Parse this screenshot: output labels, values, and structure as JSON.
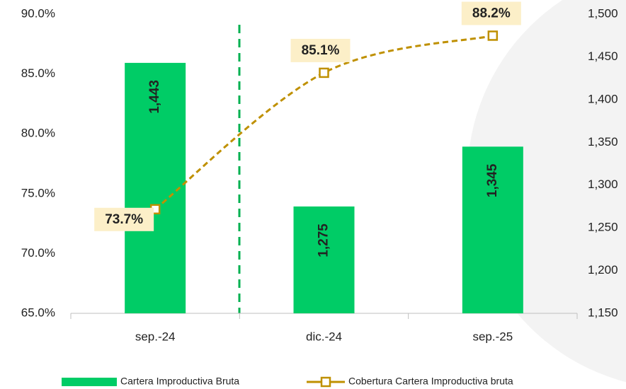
{
  "chart_data": {
    "type": "combo",
    "categories": [
      "sep.-24",
      "dic.-24",
      "sep.-25"
    ],
    "series": [
      {
        "name": "Cartera Improductiva Bruta",
        "type": "bar",
        "axis": "y2",
        "color": "#00cc66",
        "values": [
          1443,
          1275,
          1345
        ],
        "value_labels": [
          "1,443",
          "1,275",
          "1,345"
        ]
      },
      {
        "name": "Cobertura Cartera Improductiva bruta",
        "type": "line",
        "axis": "y",
        "color": "#bf9000",
        "values": [
          73.7,
          85.1,
          88.2
        ],
        "value_labels": [
          "73.7%",
          "85.1%",
          "88.2%"
        ]
      }
    ],
    "ylim": [
      65,
      90
    ],
    "yticks": [
      {
        "value": 65,
        "label": "65.0%"
      },
      {
        "value": 70,
        "label": "70.0%"
      },
      {
        "value": 75,
        "label": "75.0%"
      },
      {
        "value": 80,
        "label": "80.0%"
      },
      {
        "value": 85,
        "label": "85.0%"
      },
      {
        "value": 90,
        "label": "90.0%"
      }
    ],
    "y2lim": [
      1150,
      1500
    ],
    "y2ticks": [
      {
        "value": 1150,
        "label": "1,150"
      },
      {
        "value": 1200,
        "label": "1,200"
      },
      {
        "value": 1250,
        "label": "1,250"
      },
      {
        "value": 1300,
        "label": "1,300"
      },
      {
        "value": 1350,
        "label": "1,350"
      },
      {
        "value": 1400,
        "label": "1,400"
      },
      {
        "value": 1450,
        "label": "1,450"
      },
      {
        "value": 1500,
        "label": "1,500"
      }
    ],
    "grid": false
  }
}
